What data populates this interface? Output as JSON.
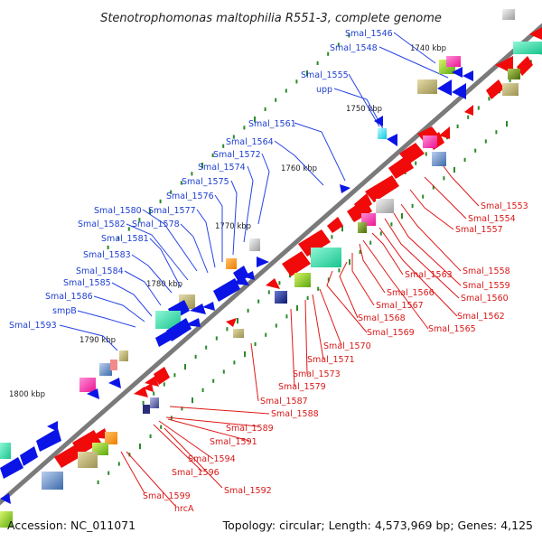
{
  "title": "Stenotrophomonas maltophilia R551-3, complete genome",
  "footer": {
    "accession": "Accession: NC_011071",
    "summary": "Topology: circular; Length: 4,573,969 bp; Genes: 4,125"
  },
  "kbp_markers": [
    "1740 kbp",
    "1750 kbp",
    "1760 kbp",
    "1770 kbp",
    "1780 kbp",
    "1790 kbp",
    "1800 kbp"
  ],
  "forward_labels": [
    "Smal_1546",
    "Smal_1548",
    "Smal_1555",
    "upp",
    "Smal_1561",
    "Smal_1564",
    "Smal_1572",
    "Smal_1574",
    "Smal_1575",
    "Smal_1576",
    "Smal_1577",
    "Smal_1578",
    "Smal_1580",
    "Smal_1582",
    "Smal_1581",
    "Smal_1583",
    "Smal_1584",
    "Smal_1585",
    "Smal_1586",
    "smpB",
    "Smal_1593"
  ],
  "reverse_labels": [
    "Smal_1553",
    "Smal_1554",
    "Smal_1557",
    "Smal_1558",
    "Smal_1559",
    "Smal_1560",
    "Smal_1563",
    "Smal_1566",
    "Smal_1567",
    "Smal_1562",
    "Smal_1568",
    "Smal_1565",
    "Smal_1569",
    "Smal_1570",
    "Smal_1571",
    "Smal_1573",
    "Smal_1579",
    "Smal_1587",
    "Smal_1588",
    "Smal_1589",
    "Smal_1591",
    "Smal_1594",
    "Smal_1596",
    "Smal_1592",
    "Smal_1599",
    "hrcA"
  ],
  "colors": {
    "forward_label": "#1f3fd0",
    "reverse_label": "#d81818",
    "backbone": "#7a7a7a",
    "forward_gene": "#0a14e6",
    "reverse_gene": "#f00a0a",
    "tick": "#2a8a2a"
  }
}
